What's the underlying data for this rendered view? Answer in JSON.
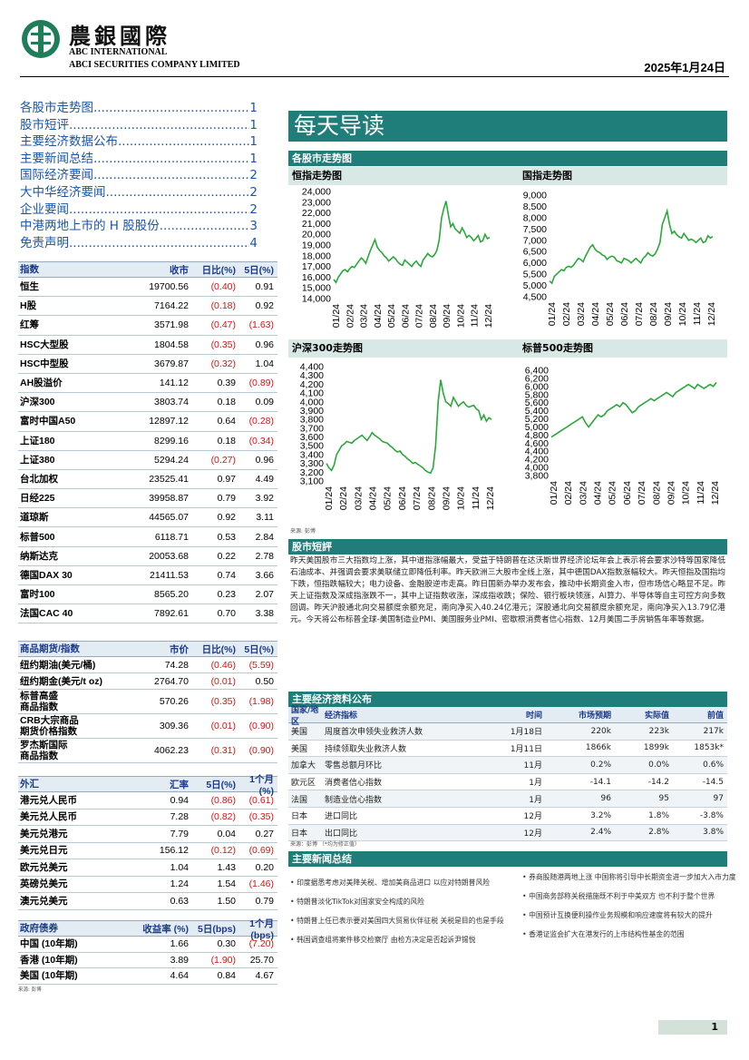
{
  "header": {
    "brand_cn": "農銀國際",
    "brand_en1": "ABC INTERNATIONAL",
    "brand_en2": "ABCI SECURITIES COMPANY LIMITED",
    "date": "2025年1月24日"
  },
  "toc": [
    {
      "title": "各股市走势图",
      "page": "1"
    },
    {
      "title": "股市短评",
      "page": "1"
    },
    {
      "title": "主要经济数据公布",
      "page": "1"
    },
    {
      "title": "主要新闻总结",
      "page": "1"
    },
    {
      "title": "国际经济要闻",
      "page": "2"
    },
    {
      "title": "大中华经济要闻",
      "page": "2"
    },
    {
      "title": "企业要闻",
      "page": "2"
    },
    {
      "title": "中港两地上市的 H 股股份",
      "page": "3"
    },
    {
      "title": "免责声明",
      "page": "4"
    }
  ],
  "indices": {
    "headers": [
      "指数",
      "收市",
      "日比(%)",
      "5日(%)"
    ],
    "rows": [
      [
        "恒生",
        "19700.56",
        "(0.40)",
        "0.91"
      ],
      [
        "H股",
        "7164.22",
        "(0.18)",
        "0.92"
      ],
      [
        "红筹",
        "3571.98",
        "(0.47)",
        "(1.63)"
      ],
      [
        "HSC大型股",
        "1804.58",
        "(0.35)",
        "0.96"
      ],
      [
        "HSC中型股",
        "3679.87",
        "(0.32)",
        "1.04"
      ],
      [
        "AH股溢价",
        "141.12",
        "0.39",
        "(0.89)"
      ],
      [
        "沪深300",
        "3803.74",
        "0.18",
        "0.09"
      ],
      [
        "富时中国A50",
        "12897.12",
        "0.64",
        "(0.28)"
      ],
      [
        "上证180",
        "8299.16",
        "0.18",
        "(0.34)"
      ],
      [
        "上证380",
        "5294.24",
        "(0.27)",
        "0.96"
      ],
      [
        "台北加权",
        "23525.41",
        "0.97",
        "4.49"
      ],
      [
        "日经225",
        "39958.87",
        "0.79",
        "3.92"
      ],
      [
        "道琼斯",
        "44565.07",
        "0.92",
        "3.11"
      ],
      [
        "标普500",
        "6118.71",
        "0.53",
        "2.84"
      ],
      [
        "纳斯达克",
        "20053.68",
        "0.22",
        "2.78"
      ],
      [
        "德国DAX 30",
        "21411.53",
        "0.74",
        "3.66"
      ],
      [
        "富时100",
        "8565.20",
        "0.23",
        "2.07"
      ],
      [
        "法国CAC 40",
        "7892.61",
        "0.70",
        "3.38"
      ]
    ]
  },
  "commodities": {
    "headers": [
      "商品期货/指数",
      "市价",
      "日比(%)",
      "5日(%)"
    ],
    "rows": [
      [
        "纽约期油(美元/桶)",
        "74.28",
        "(0.46)",
        "(5.59)"
      ],
      [
        "纽约期金(美元/t oz)",
        "2764.70",
        "(0.01)",
        "0.50"
      ],
      [
        "标普高盛\n商品指数",
        "570.26",
        "(0.35)",
        "(1.98)"
      ],
      [
        "CRB大宗商品\n期货价格指数",
        "309.36",
        "(0.01)",
        "(0.90)"
      ],
      [
        "罗杰斯国际\n商品指数",
        "4062.23",
        "(0.31)",
        "(0.90)"
      ]
    ]
  },
  "fx": {
    "headers": [
      "外汇",
      "汇率",
      "5日(%)",
      "1个月(%)"
    ],
    "rows": [
      [
        "港元兑人民币",
        "0.94",
        "(0.86)",
        "(0.61)"
      ],
      [
        "美元兑人民币",
        "7.28",
        "(0.82)",
        "(0.35)"
      ],
      [
        "美元兑港元",
        "7.79",
        "0.04",
        "0.27"
      ],
      [
        "美元兑日元",
        "156.12",
        "(0.12)",
        "(0.69)"
      ],
      [
        "欧元兑美元",
        "1.04",
        "1.43",
        "0.20"
      ],
      [
        "英磅兑美元",
        "1.24",
        "1.54",
        "(1.46)"
      ],
      [
        "澳元兑美元",
        "0.63",
        "1.50",
        "0.79"
      ]
    ]
  },
  "bonds": {
    "headers": [
      "政府债券",
      "收益率 (%)",
      "5日(bps)",
      "1个月(bps)"
    ],
    "rows": [
      [
        "中国 (10年期)",
        "1.66",
        "0.30",
        "(7.20)"
      ],
      [
        "香港 (10年期)",
        "3.89",
        "(1.90)",
        "25.70"
      ],
      [
        "美国 (10年期)",
        "4.64",
        "0.84",
        "4.67"
      ]
    ],
    "source": "来源: 彭博"
  },
  "main": {
    "title": "每天导读",
    "charts_section": "各股市走势图",
    "charts_source": "来源: 彭博",
    "commentary_section": "股市短評",
    "commentary": "昨天美国股市三大指数均上涨，其中道指涨幅最大，受益于特朗普在达沃斯世界经济论坛年会上表示将会要求沙特等国家降低石油成本、并强调会要求美联储立即降低利率。昨天欧洲三大股市全线上涨，其中德国DAX指数涨幅较大。昨天恒指及国指均下跌，恒指跌幅较大；电力设备、金融股逆市走高。昨日国新办举办发布会，推动中长期资金入市，但市场信心略显不足。昨天上证指数及深成指涨跌不一，其中上证指数收涨，深成指收跌；保险、银行板块领涨，AI算力、半导体等自主可控方向多数回调。昨天沪股通北向交易额度余额充足，南向净买入40.24亿港元；深股通北向交易额度余额充足，南向净买入13.79亿港元。今天将公布标普全球-美国制造业PMI、美国服务业PMI、密歇根消费者信心指数、12月美国二手房销售年率等数据。",
    "eco_section": "主要经济资料公布",
    "eco_headers": [
      "国家/地区",
      "经济指标",
      "时间",
      "市场预期",
      "实际值",
      "前值"
    ],
    "eco_rows": [
      [
        "美国",
        "周度首次申领失业救济人数",
        "1月18日",
        "220k",
        "223k",
        "217k"
      ],
      [
        "美国",
        "持续领取失业救济人数",
        "1月11日",
        "1866k",
        "1899k",
        "1853k*"
      ],
      [
        "加拿大",
        "零售总额月环比",
        "11月",
        "0.2%",
        "0.0%",
        "0.6%"
      ],
      [
        "欧元区",
        "消费者信心指数",
        "1月",
        "-14.1",
        "-14.2",
        "-14.5"
      ],
      [
        "法国",
        "制造业信心指数",
        "1月",
        "96",
        "95",
        "97"
      ],
      [
        "日本",
        "进口同比",
        "12月",
        "3.2%",
        "1.8%",
        "-3.8%"
      ],
      [
        "日本",
        "出口同比",
        "12月",
        "2.4%",
        "2.8%",
        "3.8%"
      ]
    ],
    "eco_source": "来源：彭博 （*均为修正值）",
    "news_section": "主要新闻总结",
    "news_left": [
      "• 印度据悉考虑对美降关税、增加美商品进口 以应对特朗普风险",
      "• 特朗普淡化TikTok对国家安全构成的风险",
      "• 特朗普上任已表示要对美国四大贸易伙伴征税 关税是目的也是手段",
      "• 韩国调查组将案件移交检察厅 由检方决定是否起诉尹锡悦"
    ],
    "news_right": [
      "• 券商股随港两地上涨 中国称将引导中长期资金进一步加大入市力度",
      "• 中国商务部称关税措施既不利于中美双方 也不利于整个世界",
      "• 中国预计互换便利操作业务规模和响应速度将有较大的提升",
      "• 香港证监会扩大在港发行的上市结构性基金的范围"
    ],
    "page_number": "1"
  },
  "chart_data": [
    {
      "type": "line",
      "title": "恒指走势图",
      "x_ticks": [
        "01/24",
        "02/24",
        "03/24",
        "04/24",
        "05/24",
        "06/24",
        "07/24",
        "08/24",
        "09/24",
        "10/24",
        "11/24",
        "12/24"
      ],
      "y_ticks": [
        "24,000",
        "23,000",
        "22,000",
        "21,000",
        "20,000",
        "19,000",
        "18,000",
        "17,000",
        "16,000",
        "15,000",
        "14,000"
      ],
      "ylim": [
        14000,
        24000
      ],
      "series": [
        {
          "values": [
            15800,
            15500,
            16000,
            16300,
            16600,
            16700,
            16500,
            16800,
            17000,
            16900,
            17200,
            17500,
            17800,
            17600,
            17300,
            17900,
            18500,
            19000,
            19500,
            18800,
            18500,
            18300,
            18000,
            17800,
            17500,
            17700,
            17900,
            17700,
            17400,
            17200,
            17100,
            17600,
            17400,
            17200,
            17000,
            17300,
            17500,
            17200,
            17000,
            17600,
            17900,
            18200,
            18000,
            17900,
            18100,
            18500,
            19500,
            21500,
            22400,
            23100,
            21800,
            20700,
            21000,
            20500,
            20300,
            20100,
            20600,
            20200,
            19700,
            19900,
            19700,
            19400,
            19600,
            19900,
            19300,
            19400,
            20000,
            19600,
            19700
          ]
        }
      ],
      "color": "#2aa83a"
    },
    {
      "type": "line",
      "title": "国指走势图",
      "x_ticks": [
        "01/24",
        "02/24",
        "03/24",
        "04/24",
        "05/24",
        "06/24",
        "07/24",
        "08/24",
        "09/24",
        "10/24",
        "11/24",
        "12/24"
      ],
      "y_ticks": [
        "9,000",
        "8,500",
        "8,000",
        "7,500",
        "7,000",
        "6,500",
        "6,000",
        "5,500",
        "5,000",
        "4,500"
      ],
      "ylim": [
        4500,
        9000
      ],
      "series": [
        {
          "values": [
            5200,
            5100,
            5400,
            5500,
            5600,
            5700,
            5650,
            5800,
            5850,
            5800,
            5900,
            6050,
            6200,
            6150,
            6050,
            6300,
            6500,
            6700,
            6800,
            6600,
            6500,
            6450,
            6350,
            6300,
            6150,
            6250,
            6300,
            6250,
            6100,
            6050,
            6000,
            6200,
            6150,
            6100,
            6000,
            6100,
            6200,
            6100,
            6000,
            6200,
            6300,
            6450,
            6350,
            6300,
            6400,
            6600,
            6900,
            7700,
            8000,
            8300,
            7700,
            7300,
            7400,
            7250,
            7150,
            7100,
            7300,
            7150,
            7000,
            7050,
            7000,
            6900,
            7000,
            7100,
            6900,
            6950,
            7200,
            7100,
            7164
          ]
        }
      ],
      "color": "#2aa83a"
    },
    {
      "type": "line",
      "title": "沪深300走势图",
      "x_ticks": [
        "01/24",
        "02/24",
        "03/24",
        "04/24",
        "05/24",
        "06/24",
        "07/24",
        "08/24",
        "09/24",
        "10/24",
        "11/24",
        "12/24"
      ],
      "y_ticks": [
        "4,400",
        "4,300",
        "4,200",
        "4,100",
        "4,000",
        "3,900",
        "3,800",
        "3,700",
        "3,600",
        "3,500",
        "3,400",
        "3,300",
        "3,200",
        "3,100"
      ],
      "ylim": [
        3100,
        4400
      ],
      "series": [
        {
          "values": [
            3300,
            3250,
            3220,
            3280,
            3400,
            3450,
            3500,
            3520,
            3550,
            3540,
            3530,
            3560,
            3580,
            3600,
            3620,
            3590,
            3560,
            3600,
            3650,
            3620,
            3600,
            3580,
            3550,
            3540,
            3530,
            3500,
            3480,
            3450,
            3430,
            3440,
            3400,
            3380,
            3350,
            3330,
            3300,
            3310,
            3290,
            3270,
            3250,
            3220,
            3200,
            3190,
            3250,
            3500,
            4000,
            4250,
            4100,
            4000,
            3980,
            3950,
            4050,
            4000,
            3950,
            3980,
            4000,
            3960,
            3940,
            3950,
            3960,
            3920,
            3900,
            3800,
            3850,
            3780,
            3820,
            3800
          ]
        }
      ],
      "color": "#2aa83a"
    },
    {
      "type": "line",
      "title": "标普500走势图",
      "x_ticks": [
        "01/24",
        "02/24",
        "03/24",
        "04/24",
        "05/24",
        "06/24",
        "07/24",
        "08/24",
        "09/24",
        "10/24",
        "11/24",
        "12/24"
      ],
      "y_ticks": [
        "6,400",
        "6,200",
        "6,000",
        "5,800",
        "5,600",
        "5,400",
        "5,200",
        "5,000",
        "4,800",
        "4,600",
        "4,400",
        "4,200",
        "4,000",
        "3,800"
      ],
      "ylim": [
        3800,
        6400
      ],
      "series": [
        {
          "values": [
            4750,
            4800,
            4850,
            4900,
            4950,
            5000,
            5050,
            5100,
            5150,
            5200,
            5250,
            5100,
            5000,
            5100,
            5200,
            5300,
            5250,
            5300,
            5400,
            5450,
            5500,
            5550,
            5500,
            5600,
            5550,
            5450,
            5350,
            5400,
            5500,
            5550,
            5600,
            5650,
            5700,
            5650,
            5700,
            5750,
            5800,
            5850,
            5800,
            5750,
            5850,
            5900,
            5950,
            6000,
            6050,
            6000,
            5950,
            6050,
            6000,
            5950,
            6000,
            6050,
            6000,
            6100
          ]
        }
      ],
      "color": "#2aa83a"
    }
  ]
}
